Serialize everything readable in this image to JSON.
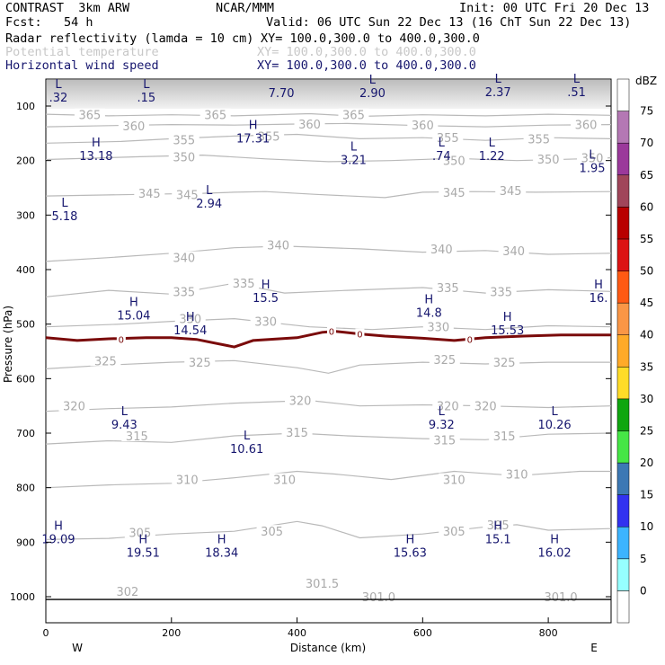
{
  "header": {
    "line1_left": "CONTRAST  3km ARW",
    "line1_mid": "NCAR/MMM",
    "line1_right": "Init: 00 UTC Fri 20 Dec 13",
    "line2_left": "Fcst:   54 h",
    "line2_right": "Valid: 06 UTC Sun 22 Dec 13 (16 ChT Sun 22 Dec 13)"
  },
  "fields": [
    {
      "name": "Radar reflectivity (lamda = 10 cm)",
      "xy": "XY= 100.0,300.0 to 400.0,300.0",
      "color": "#000000"
    },
    {
      "name": "Potential temperature",
      "xy": "XY= 100.0,300.0 to 400.0,300.0",
      "color": "#c8c8c8"
    },
    {
      "name": "Horizontal wind speed",
      "xy": "XY= 100.0,300.0 to 400.0,300.0",
      "color": "#16166e"
    }
  ],
  "chart_data": {
    "type": "contour",
    "xlabel": "Distance (km)",
    "ylabel": "Pressure (hPa)",
    "xlim": [
      0,
      900
    ],
    "ylim": [
      1050,
      50
    ],
    "x_ticks": [
      "0",
      "200",
      "400",
      "600",
      "800"
    ],
    "x_tick_values": [
      0,
      200,
      400,
      600,
      800
    ],
    "y_ticks": [
      "100",
      "200",
      "300",
      "400",
      "500",
      "600",
      "700",
      "800",
      "900",
      "1000"
    ],
    "y_tick_values": [
      100,
      200,
      300,
      400,
      500,
      600,
      700,
      800,
      900,
      1000
    ],
    "direction_labels": {
      "left": "W",
      "right": "E"
    },
    "theta_contours": [
      {
        "value": "365",
        "points": [
          [
            0,
            115
          ],
          [
            100,
            118
          ],
          [
            200,
            116
          ],
          [
            300,
            118
          ],
          [
            420,
            114
          ],
          [
            500,
            119
          ],
          [
            600,
            116
          ],
          [
            700,
            118
          ],
          [
            800,
            115
          ],
          [
            900,
            117
          ]
        ],
        "labels": [
          [
            70,
            116
          ],
          [
            270,
            116
          ],
          [
            490,
            116
          ]
        ]
      },
      {
        "value": "360",
        "points": [
          [
            0,
            138
          ],
          [
            100,
            136
          ],
          [
            200,
            134
          ],
          [
            300,
            135
          ],
          [
            400,
            133
          ],
          [
            480,
            132
          ],
          [
            600,
            136
          ],
          [
            700,
            138
          ],
          [
            800,
            135
          ],
          [
            900,
            134
          ]
        ],
        "labels": [
          [
            140,
            136
          ],
          [
            420,
            133
          ],
          [
            600,
            135
          ],
          [
            860,
            134
          ]
        ]
      },
      {
        "value": "355",
        "points": [
          [
            0,
            168
          ],
          [
            120,
            165
          ],
          [
            200,
            160
          ],
          [
            300,
            155
          ],
          [
            400,
            152
          ],
          [
            500,
            160
          ],
          [
            600,
            158
          ],
          [
            700,
            163
          ],
          [
            800,
            158
          ],
          [
            900,
            160
          ]
        ],
        "labels": [
          [
            220,
            162
          ],
          [
            355,
            155
          ],
          [
            640,
            158
          ],
          [
            785,
            160
          ]
        ]
      },
      {
        "value": "350",
        "points": [
          [
            0,
            198
          ],
          [
            150,
            193
          ],
          [
            250,
            190
          ],
          [
            350,
            197
          ],
          [
            450,
            202
          ],
          [
            550,
            200
          ],
          [
            650,
            196
          ],
          [
            750,
            200
          ],
          [
            850,
            197
          ],
          [
            900,
            195
          ]
        ],
        "labels": [
          [
            220,
            193
          ],
          [
            650,
            200
          ],
          [
            800,
            197
          ],
          [
            870,
            195
          ]
        ]
      },
      {
        "value": "345",
        "points": [
          [
            0,
            265
          ],
          [
            150,
            262
          ],
          [
            250,
            260
          ],
          [
            300,
            258
          ],
          [
            350,
            257
          ],
          [
            430,
            262
          ],
          [
            540,
            268
          ],
          [
            600,
            258
          ],
          [
            680,
            257
          ],
          [
            780,
            258
          ],
          [
            900,
            257
          ]
        ],
        "labels": [
          [
            165,
            260
          ],
          [
            225,
            262
          ],
          [
            650,
            258
          ],
          [
            740,
            255
          ]
        ]
      },
      {
        "value": "340",
        "points": [
          [
            0,
            385
          ],
          [
            100,
            378
          ],
          [
            200,
            370
          ],
          [
            300,
            360
          ],
          [
            380,
            357
          ],
          [
            500,
            362
          ],
          [
            600,
            368
          ],
          [
            700,
            365
          ],
          [
            800,
            372
          ],
          [
            900,
            370
          ]
        ],
        "labels": [
          [
            220,
            378
          ],
          [
            370,
            355
          ],
          [
            630,
            362
          ],
          [
            745,
            365
          ]
        ]
      },
      {
        "value": "335",
        "points": [
          [
            0,
            450
          ],
          [
            100,
            438
          ],
          [
            200,
            445
          ],
          [
            300,
            425
          ],
          [
            380,
            443
          ],
          [
            480,
            438
          ],
          [
            600,
            433
          ],
          [
            700,
            443
          ],
          [
            800,
            437
          ],
          [
            900,
            440
          ]
        ],
        "labels": [
          [
            220,
            440
          ],
          [
            315,
            425
          ],
          [
            640,
            433
          ],
          [
            725,
            440
          ]
        ]
      },
      {
        "value": "330",
        "points": [
          [
            0,
            505
          ],
          [
            120,
            500
          ],
          [
            200,
            495
          ],
          [
            300,
            490
          ],
          [
            420,
            505
          ],
          [
            520,
            510
          ],
          [
            600,
            505
          ],
          [
            700,
            510
          ],
          [
            800,
            503
          ],
          [
            900,
            505
          ]
        ],
        "labels": [
          [
            230,
            490
          ],
          [
            350,
            495
          ],
          [
            625,
            505
          ]
        ]
      },
      {
        "value": "325",
        "points": [
          [
            0,
            582
          ],
          [
            100,
            575
          ],
          [
            200,
            570
          ],
          [
            300,
            567
          ],
          [
            400,
            580
          ],
          [
            450,
            590
          ],
          [
            500,
            575
          ],
          [
            600,
            570
          ],
          [
            700,
            573
          ],
          [
            800,
            570
          ],
          [
            900,
            570
          ]
        ],
        "labels": [
          [
            95,
            567
          ],
          [
            245,
            570
          ],
          [
            635,
            565
          ],
          [
            730,
            570
          ]
        ]
      },
      {
        "value": "320",
        "points": [
          [
            0,
            660
          ],
          [
            100,
            655
          ],
          [
            200,
            652
          ],
          [
            300,
            645
          ],
          [
            420,
            640
          ],
          [
            500,
            650
          ],
          [
            600,
            648
          ],
          [
            700,
            650
          ],
          [
            800,
            653
          ],
          [
            900,
            650
          ]
        ],
        "labels": [
          [
            45,
            650
          ],
          [
            405,
            640
          ],
          [
            640,
            650
          ],
          [
            700,
            650
          ]
        ]
      },
      {
        "value": "315",
        "points": [
          [
            0,
            720
          ],
          [
            100,
            714
          ],
          [
            200,
            717
          ],
          [
            300,
            705
          ],
          [
            400,
            700
          ],
          [
            480,
            705
          ],
          [
            600,
            710
          ],
          [
            700,
            712
          ],
          [
            800,
            702
          ],
          [
            900,
            700
          ]
        ],
        "labels": [
          [
            145,
            705
          ],
          [
            400,
            698
          ],
          [
            635,
            712
          ],
          [
            730,
            705
          ]
        ]
      },
      {
        "value": "310",
        "points": [
          [
            0,
            800
          ],
          [
            100,
            795
          ],
          [
            200,
            792
          ],
          [
            300,
            782
          ],
          [
            400,
            770
          ],
          [
            460,
            775
          ],
          [
            550,
            785
          ],
          [
            650,
            770
          ],
          [
            750,
            778
          ],
          [
            850,
            770
          ],
          [
            900,
            770
          ]
        ],
        "labels": [
          [
            225,
            785
          ],
          [
            380,
            785
          ],
          [
            650,
            785
          ],
          [
            750,
            775
          ]
        ]
      },
      {
        "value": "305",
        "points": [
          [
            0,
            895
          ],
          [
            100,
            893
          ],
          [
            200,
            885
          ],
          [
            300,
            880
          ],
          [
            400,
            862
          ],
          [
            440,
            870
          ],
          [
            500,
            892
          ],
          [
            600,
            885
          ],
          [
            700,
            872
          ],
          [
            750,
            868
          ],
          [
            800,
            878
          ],
          [
            900,
            875
          ]
        ],
        "labels": [
          [
            150,
            882
          ],
          [
            360,
            880
          ],
          [
            650,
            880
          ],
          [
            720,
            868
          ]
        ]
      },
      {
        "value": "302",
        "points": [],
        "labels": [
          [
            130,
            990
          ]
        ]
      },
      {
        "value": "301.5",
        "points": [],
        "labels": [
          [
            440,
            975
          ]
        ]
      },
      {
        "value": "301.0",
        "points": [],
        "labels": [
          [
            530,
            1000
          ],
          [
            820,
            1000
          ]
        ]
      }
    ],
    "reflectivity_zero_contour": {
      "value": "0",
      "points": [
        [
          0,
          525
        ],
        [
          50,
          530
        ],
        [
          100,
          527
        ],
        [
          160,
          525
        ],
        [
          200,
          525
        ],
        [
          240,
          528
        ],
        [
          300,
          542
        ],
        [
          330,
          530
        ],
        [
          400,
          525
        ],
        [
          440,
          515
        ],
        [
          460,
          513
        ],
        [
          500,
          518
        ],
        [
          540,
          522
        ],
        [
          600,
          526
        ],
        [
          650,
          530
        ],
        [
          700,
          525
        ],
        [
          760,
          522
        ],
        [
          820,
          520
        ],
        [
          900,
          520
        ]
      ],
      "labels": [
        [
          120,
          528
        ],
        [
          455,
          513
        ],
        [
          500,
          518
        ],
        [
          675,
          528
        ]
      ]
    },
    "wind_extrema": [
      {
        "type": "L",
        "value": ".32",
        "x": 20,
        "p": 80
      },
      {
        "type": "L",
        "value": ".15",
        "x": 160,
        "p": 80
      },
      {
        "type": "",
        "value": "7.70",
        "x": 375,
        "p": 72
      },
      {
        "type": "L",
        "value": "2.90",
        "x": 520,
        "p": 72
      },
      {
        "type": "L",
        "value": "2.37",
        "x": 720,
        "p": 70
      },
      {
        "type": "L",
        "value": ".51",
        "x": 845,
        "p": 70
      },
      {
        "type": "H",
        "value": "17.31",
        "x": 330,
        "p": 155
      },
      {
        "type": "H",
        "value": "13.18",
        "x": 80,
        "p": 187
      },
      {
        "type": "L",
        "value": "3.21",
        "x": 490,
        "p": 195
      },
      {
        "type": "L",
        "value": ".74",
        "x": 630,
        "p": 187
      },
      {
        "type": "L",
        "value": "1.22",
        "x": 710,
        "p": 187
      },
      {
        "type": "L",
        "value": "1.95",
        "x": 870,
        "p": 210
      },
      {
        "type": "L",
        "value": "2.94",
        "x": 260,
        "p": 275
      },
      {
        "type": "L",
        "value": "5.18",
        "x": 30,
        "p": 298
      },
      {
        "type": "H",
        "value": "15.5",
        "x": 350,
        "p": 448
      },
      {
        "type": "H",
        "value": "15.04",
        "x": 140,
        "p": 480
      },
      {
        "type": "H",
        "value": "14.8",
        "x": 610,
        "p": 475
      },
      {
        "type": "H",
        "value": "16.",
        "x": 880,
        "p": 448
      },
      {
        "type": "H",
        "value": "14.54",
        "x": 230,
        "p": 507
      },
      {
        "type": "H",
        "value": "15.53",
        "x": 735,
        "p": 507
      },
      {
        "type": "L",
        "value": "9.43",
        "x": 125,
        "p": 680
      },
      {
        "type": "L",
        "value": "9.32",
        "x": 630,
        "p": 680
      },
      {
        "type": "L",
        "value": "10.26",
        "x": 810,
        "p": 680
      },
      {
        "type": "L",
        "value": "10.61",
        "x": 320,
        "p": 725
      },
      {
        "type": "H",
        "value": "19.09",
        "x": 20,
        "p": 890
      },
      {
        "type": "H",
        "value": "15.1",
        "x": 720,
        "p": 890
      },
      {
        "type": "H",
        "value": "19.51",
        "x": 155,
        "p": 915
      },
      {
        "type": "H",
        "value": "18.34",
        "x": 280,
        "p": 915
      },
      {
        "type": "H",
        "value": "15.63",
        "x": 580,
        "p": 915
      },
      {
        "type": "H",
        "value": "16.02",
        "x": 810,
        "p": 915
      }
    ],
    "ground_pressure": 1005,
    "top_shading_pressure": 105
  },
  "colorbar": {
    "unit": "dBZ",
    "levels": [
      "0",
      "5",
      "10",
      "15",
      "20",
      "25",
      "30",
      "35",
      "40",
      "45",
      "50",
      "55",
      "60",
      "65",
      "70",
      "75"
    ],
    "colors": [
      "#ffffff",
      "#96ffff",
      "#3cb4ff",
      "#3232f0",
      "#3c78b4",
      "#46e646",
      "#10a610",
      "#ffdc28",
      "#ffaa28",
      "#fa9646",
      "#ff5a14",
      "#dc1414",
      "#b90000",
      "#a0465a",
      "#9b399b",
      "#b478b4",
      "#ffffff"
    ]
  }
}
